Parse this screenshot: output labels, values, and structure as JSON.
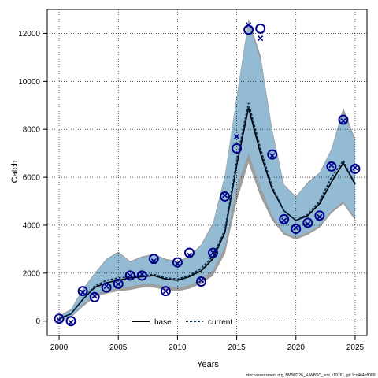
{
  "chart_data": {
    "type": "line",
    "title": "",
    "xlabel": "Years",
    "ylabel": "Catch",
    "xlim": [
      1999,
      2026
    ],
    "ylim": [
      -600,
      13000
    ],
    "x_ticks": [
      2000,
      2005,
      2010,
      2015,
      2020,
      2025
    ],
    "y_ticks": [
      0,
      2000,
      4000,
      6000,
      8000,
      10000,
      12000
    ],
    "grid": true,
    "legend_position": "bottom-center",
    "colors": {
      "band_current": "#93bcd4",
      "band_base": "#9e9e9e",
      "markers": "#00008b",
      "base_line": "#000000",
      "current_line": "#0a2a55"
    },
    "years": [
      2000,
      2001,
      2002,
      2003,
      2004,
      2005,
      2006,
      2007,
      2008,
      2009,
      2010,
      2011,
      2012,
      2013,
      2014,
      2015,
      2016,
      2017,
      2018,
      2019,
      2020,
      2021,
      2022,
      2023,
      2024,
      2025
    ],
    "observed": [
      100,
      0,
      1250,
      1000,
      1400,
      1550,
      1900,
      1900,
      2600,
      1250,
      2450,
      2850,
      1650,
      2850,
      5200,
      7200,
      12150,
      12200,
      6950,
      4250,
      3850,
      4100,
      4400,
      6450,
      8400,
      6350
    ],
    "predicted": [
      50,
      -50,
      1200,
      1050,
      1450,
      1550,
      1900,
      1950,
      2500,
      1250,
      2400,
      2750,
      1700,
      2850,
      5250,
      7700,
      12350,
      11800,
      6900,
      4200,
      3900,
      4050,
      4350,
      6500,
      8350,
      6400
    ],
    "series": [
      {
        "name": "base",
        "values": [
          100,
          300,
          900,
          1400,
          1600,
          1700,
          1800,
          1850,
          1900,
          1750,
          1700,
          1850,
          2100,
          2600,
          3700,
          6500,
          8900,
          7000,
          5500,
          4600,
          4200,
          4400,
          4900,
          5800,
          6600,
          5700
        ]
      },
      {
        "name": "current",
        "values": [
          100,
          300,
          900,
          1450,
          1700,
          1800,
          1850,
          1900,
          1950,
          1800,
          1750,
          1900,
          2200,
          2700,
          3800,
          6700,
          9100,
          7200,
          5600,
          4600,
          4200,
          4450,
          5000,
          6000,
          6700,
          5700
        ]
      }
    ],
    "bands": {
      "base": {
        "lower": [
          0,
          150,
          600,
          1000,
          1150,
          1250,
          1300,
          1400,
          1400,
          1300,
          1250,
          1350,
          1550,
          1900,
          2800,
          5000,
          6600,
          5200,
          4200,
          3600,
          3400,
          3600,
          3900,
          4500,
          4900,
          4200
        ],
        "upper": [
          220,
          500,
          1350,
          2000,
          2600,
          2900,
          2500,
          2700,
          2800,
          2600,
          2500,
          2700,
          3200,
          4100,
          6100,
          9400,
          12600,
          11100,
          8000,
          5700,
          5200,
          5800,
          6200,
          7200,
          8900,
          7600
        ]
      },
      "current": {
        "lower": [
          0,
          180,
          700,
          1100,
          1300,
          1350,
          1450,
          1550,
          1550,
          1450,
          1400,
          1500,
          1750,
          2100,
          3100,
          5600,
          7000,
          5600,
          4400,
          3700,
          3500,
          3700,
          4000,
          4600,
          5000,
          4300
        ],
        "upper": [
          200,
          450,
          1300,
          1950,
          2550,
          2850,
          2450,
          2650,
          2750,
          2550,
          2450,
          2650,
          3150,
          4000,
          6000,
          9300,
          12400,
          10900,
          7850,
          5650,
          5150,
          5750,
          6150,
          7150,
          8700,
          7500
        ]
      }
    },
    "footnote": "stockassessment.org, NWWG26_N-WBSC_test, r19761, git:1cc464b8066f"
  }
}
